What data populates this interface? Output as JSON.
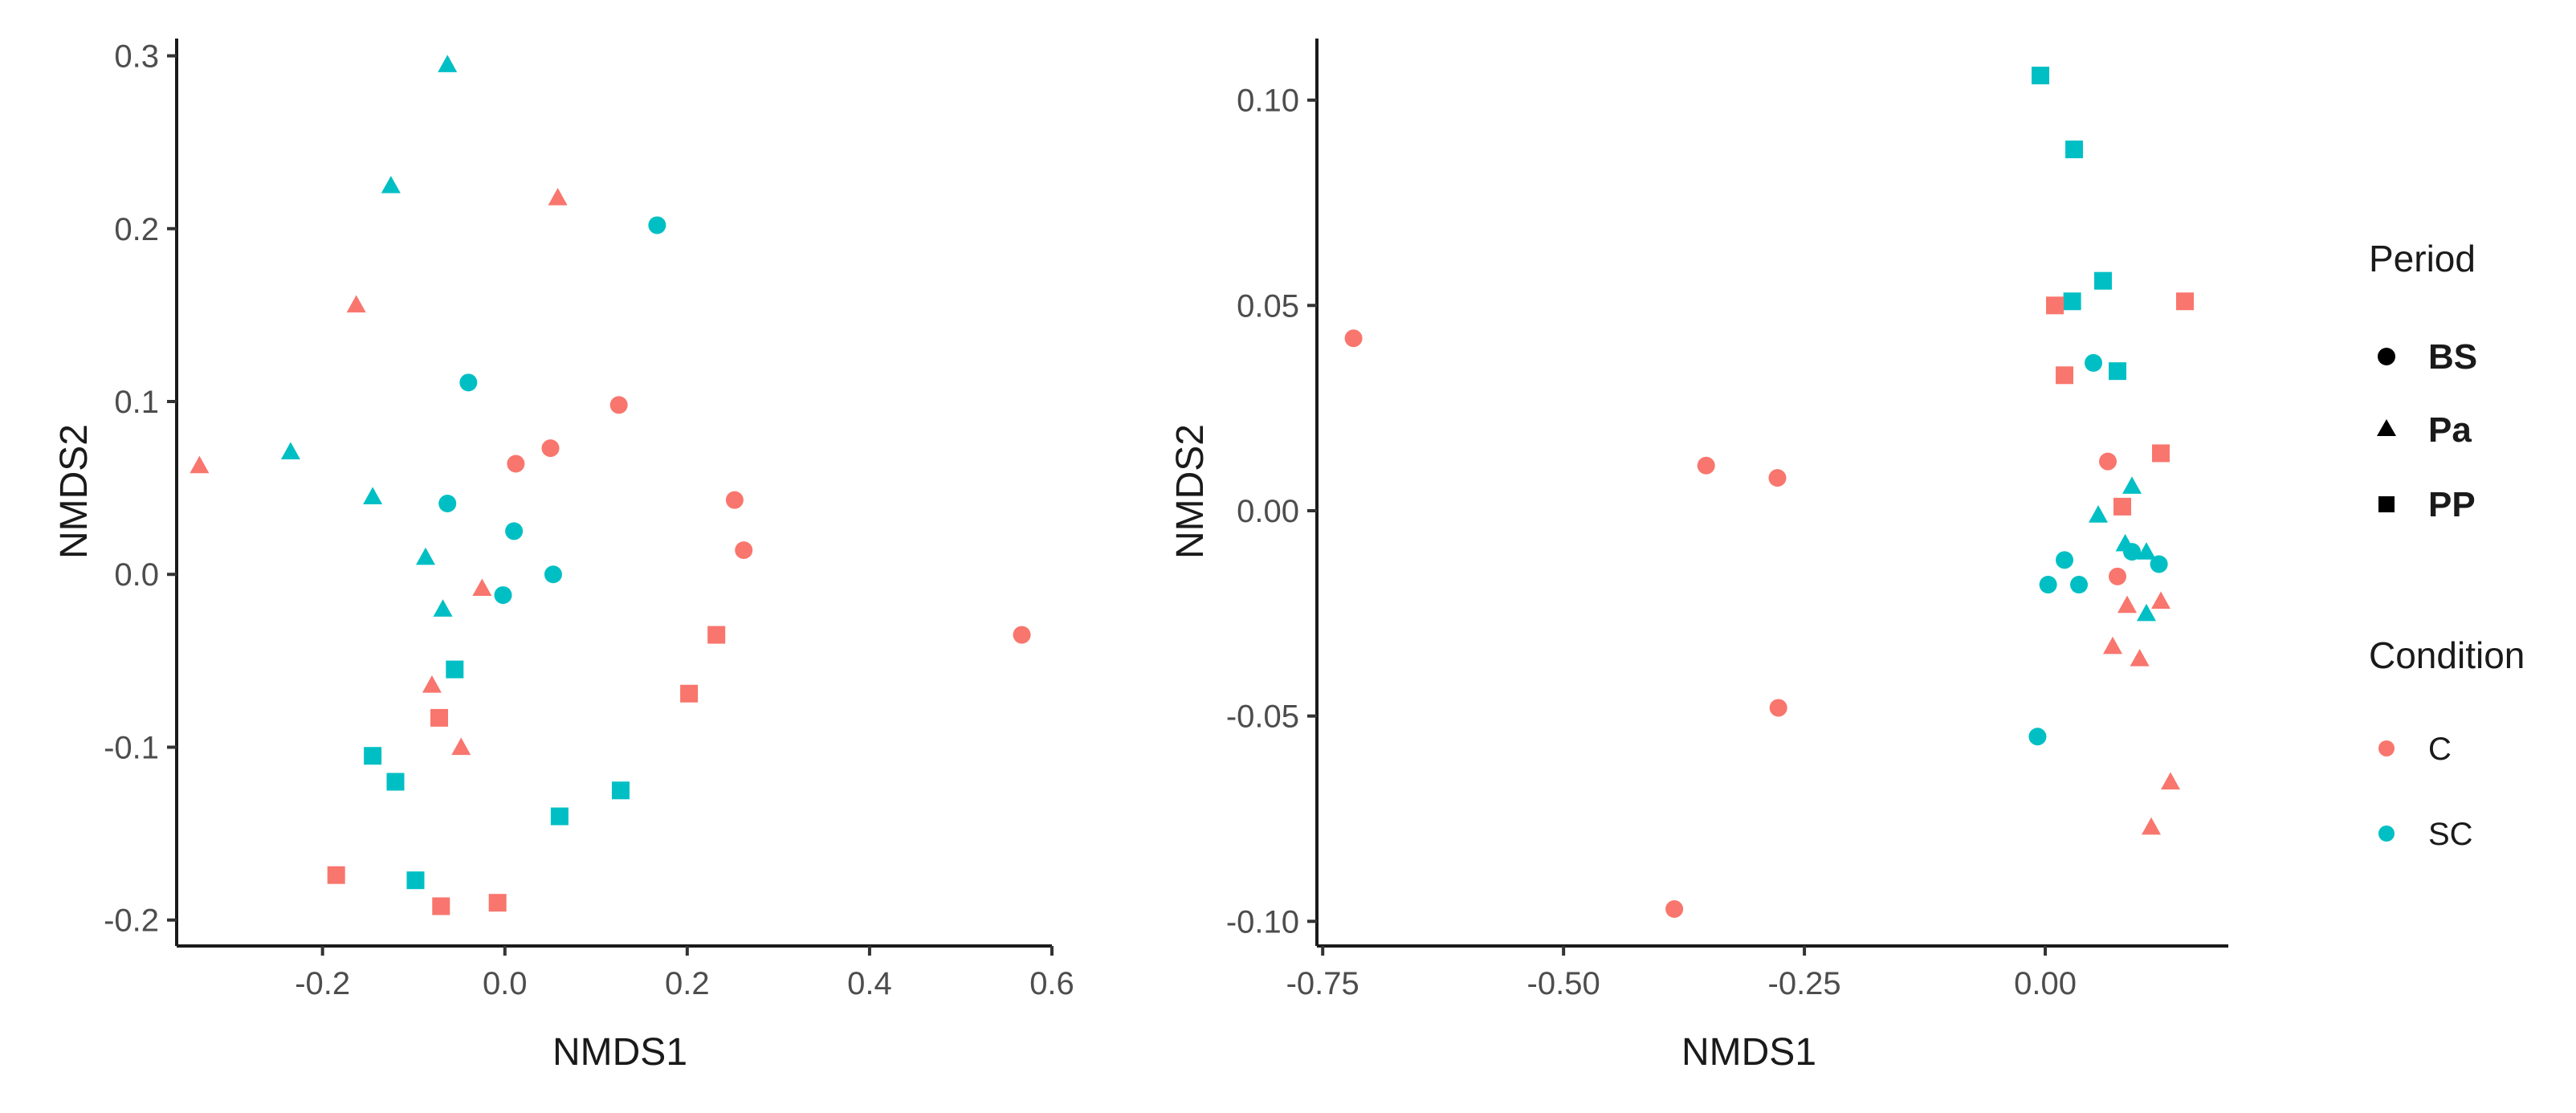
{
  "chart_data": [
    {
      "type": "scatter",
      "xlabel": "NMDS1",
      "ylabel": "NMDS2",
      "xlim": [
        -0.36,
        0.6
      ],
      "ylim": [
        -0.215,
        0.31
      ],
      "xticks": [
        -0.2,
        0.0,
        0.2,
        0.4,
        0.6
      ],
      "xtick_labels": [
        "-0.2",
        "0.0",
        "0.2",
        "0.4",
        "0.6"
      ],
      "yticks": [
        -0.2,
        -0.1,
        0.0,
        0.1,
        0.2,
        0.3
      ],
      "ytick_labels": [
        "-0.2",
        "-0.1",
        "0.0",
        "0.1",
        "0.2",
        "0.3"
      ],
      "grid": false,
      "points": [
        {
          "x": -0.063,
          "y": 0.295,
          "period": "Pa",
          "condition": "SC"
        },
        {
          "x": -0.125,
          "y": 0.225,
          "period": "Pa",
          "condition": "SC"
        },
        {
          "x": 0.058,
          "y": 0.218,
          "period": "Pa",
          "condition": "C"
        },
        {
          "x": 0.167,
          "y": 0.202,
          "period": "BS",
          "condition": "SC"
        },
        {
          "x": -0.163,
          "y": 0.156,
          "period": "Pa",
          "condition": "C"
        },
        {
          "x": -0.04,
          "y": 0.111,
          "period": "BS",
          "condition": "SC"
        },
        {
          "x": 0.125,
          "y": 0.098,
          "period": "BS",
          "condition": "C"
        },
        {
          "x": 0.05,
          "y": 0.073,
          "period": "BS",
          "condition": "C"
        },
        {
          "x": -0.235,
          "y": 0.071,
          "period": "Pa",
          "condition": "SC"
        },
        {
          "x": 0.012,
          "y": 0.064,
          "period": "BS",
          "condition": "C"
        },
        {
          "x": -0.335,
          "y": 0.063,
          "period": "Pa",
          "condition": "C"
        },
        {
          "x": -0.145,
          "y": 0.045,
          "period": "Pa",
          "condition": "SC"
        },
        {
          "x": 0.252,
          "y": 0.043,
          "period": "BS",
          "condition": "C"
        },
        {
          "x": -0.063,
          "y": 0.041,
          "period": "BS",
          "condition": "SC"
        },
        {
          "x": 0.01,
          "y": 0.025,
          "period": "BS",
          "condition": "SC"
        },
        {
          "x": 0.262,
          "y": 0.014,
          "period": "BS",
          "condition": "C"
        },
        {
          "x": -0.087,
          "y": 0.01,
          "period": "Pa",
          "condition": "SC"
        },
        {
          "x": 0.053,
          "y": 0.0,
          "period": "BS",
          "condition": "SC"
        },
        {
          "x": -0.025,
          "y": -0.008,
          "period": "Pa",
          "condition": "C"
        },
        {
          "x": -0.002,
          "y": -0.012,
          "period": "BS",
          "condition": "SC"
        },
        {
          "x": -0.068,
          "y": -0.02,
          "period": "Pa",
          "condition": "SC"
        },
        {
          "x": 0.567,
          "y": -0.035,
          "period": "BS",
          "condition": "C"
        },
        {
          "x": 0.232,
          "y": -0.035,
          "period": "PP",
          "condition": "C"
        },
        {
          "x": -0.055,
          "y": -0.055,
          "period": "PP",
          "condition": "SC"
        },
        {
          "x": -0.08,
          "y": -0.064,
          "period": "Pa",
          "condition": "C"
        },
        {
          "x": 0.202,
          "y": -0.069,
          "period": "PP",
          "condition": "C"
        },
        {
          "x": -0.072,
          "y": -0.083,
          "period": "PP",
          "condition": "C"
        },
        {
          "x": -0.048,
          "y": -0.1,
          "period": "Pa",
          "condition": "C"
        },
        {
          "x": -0.145,
          "y": -0.105,
          "period": "PP",
          "condition": "SC"
        },
        {
          "x": -0.12,
          "y": -0.12,
          "period": "PP",
          "condition": "SC"
        },
        {
          "x": 0.127,
          "y": -0.125,
          "period": "PP",
          "condition": "SC"
        },
        {
          "x": 0.06,
          "y": -0.14,
          "period": "PP",
          "condition": "SC"
        },
        {
          "x": -0.185,
          "y": -0.174,
          "period": "PP",
          "condition": "C"
        },
        {
          "x": -0.098,
          "y": -0.177,
          "period": "PP",
          "condition": "SC"
        },
        {
          "x": -0.008,
          "y": -0.19,
          "period": "PP",
          "condition": "C"
        },
        {
          "x": -0.07,
          "y": -0.192,
          "period": "PP",
          "condition": "C"
        }
      ]
    },
    {
      "type": "scatter",
      "xlabel": "NMDS1",
      "ylabel": "NMDS2",
      "xlim": [
        -0.756,
        0.19
      ],
      "ylim": [
        -0.106,
        0.115
      ],
      "xticks": [
        -0.75,
        -0.5,
        -0.25,
        0.0
      ],
      "xtick_labels": [
        "-0.75",
        "-0.50",
        "-0.25",
        "0.00"
      ],
      "yticks": [
        -0.1,
        -0.05,
        0.0,
        0.05,
        0.1
      ],
      "ytick_labels": [
        "-0.10",
        "-0.05",
        "0.00",
        "0.05",
        "0.10"
      ],
      "grid": false,
      "points": [
        {
          "x": -0.005,
          "y": 0.106,
          "period": "PP",
          "condition": "SC"
        },
        {
          "x": 0.03,
          "y": 0.088,
          "period": "PP",
          "condition": "SC"
        },
        {
          "x": 0.06,
          "y": 0.056,
          "period": "PP",
          "condition": "SC"
        },
        {
          "x": 0.028,
          "y": 0.051,
          "period": "PP",
          "condition": "SC"
        },
        {
          "x": 0.01,
          "y": 0.05,
          "period": "PP",
          "condition": "C"
        },
        {
          "x": 0.145,
          "y": 0.051,
          "period": "PP",
          "condition": "C"
        },
        {
          "x": -0.718,
          "y": 0.042,
          "period": "BS",
          "condition": "C"
        },
        {
          "x": 0.05,
          "y": 0.036,
          "period": "BS",
          "condition": "SC"
        },
        {
          "x": 0.075,
          "y": 0.034,
          "period": "PP",
          "condition": "SC"
        },
        {
          "x": 0.02,
          "y": 0.033,
          "period": "PP",
          "condition": "C"
        },
        {
          "x": 0.12,
          "y": 0.014,
          "period": "PP",
          "condition": "C"
        },
        {
          "x": 0.065,
          "y": 0.012,
          "period": "BS",
          "condition": "C"
        },
        {
          "x": -0.352,
          "y": 0.011,
          "period": "BS",
          "condition": "C"
        },
        {
          "x": -0.278,
          "y": 0.008,
          "period": "BS",
          "condition": "C"
        },
        {
          "x": 0.09,
          "y": 0.006,
          "period": "Pa",
          "condition": "SC"
        },
        {
          "x": 0.08,
          "y": 0.001,
          "period": "PP",
          "condition": "C"
        },
        {
          "x": 0.055,
          "y": -0.001,
          "period": "Pa",
          "condition": "SC"
        },
        {
          "x": 0.083,
          "y": -0.008,
          "period": "Pa",
          "condition": "SC"
        },
        {
          "x": 0.09,
          "y": -0.01,
          "period": "BS",
          "condition": "SC"
        },
        {
          "x": 0.105,
          "y": -0.01,
          "period": "Pa",
          "condition": "SC"
        },
        {
          "x": 0.02,
          "y": -0.012,
          "period": "BS",
          "condition": "SC"
        },
        {
          "x": 0.118,
          "y": -0.013,
          "period": "BS",
          "condition": "SC"
        },
        {
          "x": 0.075,
          "y": -0.016,
          "period": "BS",
          "condition": "C"
        },
        {
          "x": 0.003,
          "y": -0.018,
          "period": "BS",
          "condition": "SC"
        },
        {
          "x": 0.035,
          "y": -0.018,
          "period": "BS",
          "condition": "SC"
        },
        {
          "x": 0.12,
          "y": -0.022,
          "period": "Pa",
          "condition": "C"
        },
        {
          "x": 0.085,
          "y": -0.023,
          "period": "Pa",
          "condition": "C"
        },
        {
          "x": 0.105,
          "y": -0.025,
          "period": "Pa",
          "condition": "SC"
        },
        {
          "x": 0.07,
          "y": -0.033,
          "period": "Pa",
          "condition": "C"
        },
        {
          "x": 0.098,
          "y": -0.036,
          "period": "Pa",
          "condition": "C"
        },
        {
          "x": -0.277,
          "y": -0.048,
          "period": "BS",
          "condition": "C"
        },
        {
          "x": -0.008,
          "y": -0.055,
          "period": "BS",
          "condition": "SC"
        },
        {
          "x": 0.13,
          "y": -0.066,
          "period": "Pa",
          "condition": "C"
        },
        {
          "x": 0.11,
          "y": -0.077,
          "period": "Pa",
          "condition": "C"
        },
        {
          "x": -0.385,
          "y": -0.097,
          "period": "BS",
          "condition": "C"
        }
      ]
    }
  ],
  "legend": {
    "period_title": "Period",
    "period_items": [
      {
        "label": "BS",
        "shape": "circle"
      },
      {
        "label": "Pa",
        "shape": "triangle"
      },
      {
        "label": "PP",
        "shape": "square"
      }
    ],
    "condition_title": "Condition",
    "condition_items": [
      {
        "label": "C",
        "color": "#F8766D"
      },
      {
        "label": "SC",
        "color": "#00BFC4"
      }
    ]
  },
  "colors": {
    "C": "#F8766D",
    "SC": "#00BFC4"
  }
}
